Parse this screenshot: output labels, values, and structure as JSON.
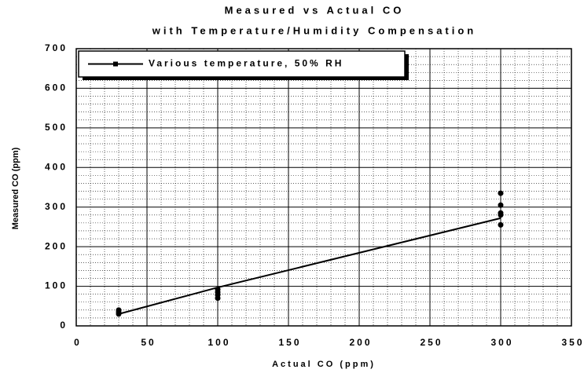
{
  "chart_data": {
    "type": "scatter",
    "title": "Measured vs Actual CO",
    "subtitle": "with Temperature/Humidity Compensation",
    "x_label": "Actual CO (ppm)",
    "y_label": "Measured CO (ppm)",
    "series": [
      {
        "name": "Various temperature, 50% RH",
        "color": "#000000",
        "x": [
          30,
          30,
          30,
          100,
          100,
          100,
          100,
          300,
          300,
          300,
          300,
          300
        ],
        "values": [
          30,
          35,
          40,
          70,
          78,
          85,
          92,
          255,
          280,
          285,
          305,
          335
        ],
        "line": {
          "x": [
            30,
            100,
            300
          ],
          "values": [
            30,
            97,
            272
          ]
        }
      }
    ],
    "xlim": [
      0,
      350
    ],
    "xticks": [
      0,
      50,
      100,
      150,
      200,
      250,
      300,
      350
    ],
    "ylim": [
      0,
      700
    ],
    "yticks": [
      0,
      100,
      200,
      300,
      400,
      500,
      600,
      700
    ],
    "minor_xticks": [
      10,
      20,
      30,
      40,
      60,
      70,
      80,
      90,
      110,
      120,
      130,
      140,
      160,
      170,
      180,
      190,
      210,
      220,
      230,
      240,
      260,
      270,
      280,
      290,
      310,
      320,
      330,
      340
    ],
    "minor_yticks": [
      20,
      40,
      60,
      80,
      120,
      140,
      160,
      180,
      220,
      240,
      260,
      280,
      320,
      340,
      360,
      380,
      420,
      440,
      460,
      480,
      520,
      540,
      560,
      580,
      620,
      640,
      660,
      680
    ],
    "grid": true,
    "legend": "top-left"
  }
}
